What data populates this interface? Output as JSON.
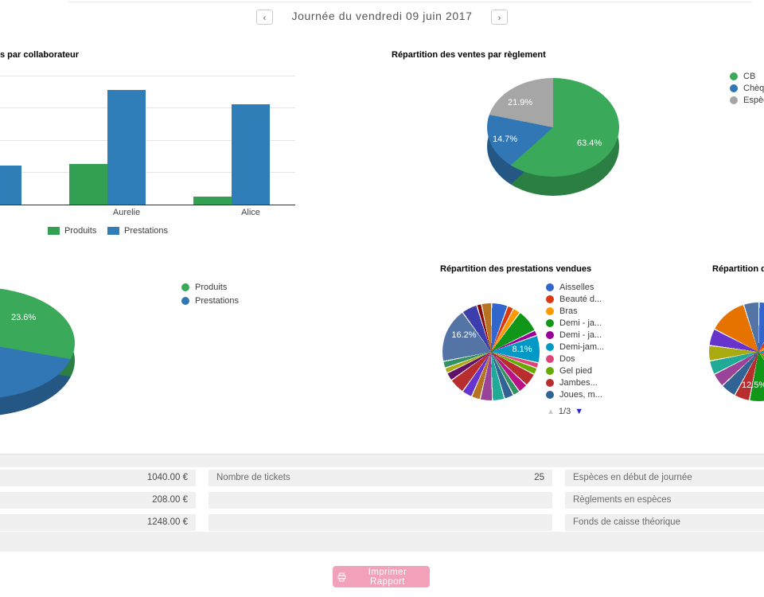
{
  "header": {
    "date_label": "Journée du vendredi 09 juin 2017",
    "prev_icon": "‹",
    "next_icon": "›"
  },
  "charts": {
    "collab_bar": {
      "type": "bar",
      "title_visible": "s par collaborateur",
      "categories": [
        "",
        "Aurelie",
        "Alice"
      ],
      "series": [
        {
          "name": "Produits",
          "color": "#33a054",
          "values": [
            null,
            125,
            25
          ]
        },
        {
          "name": "Prestations",
          "color": "#2f7eb8",
          "values": [
            120,
            355,
            310
          ]
        }
      ],
      "ylim": [
        0,
        400
      ],
      "grid": "on"
    },
    "reglement_pie": {
      "type": "pie",
      "title": "Répartition des ventes par règlement",
      "slices": [
        {
          "label": "CB",
          "pct": 63.4,
          "pct_label": "63.4%",
          "color": "#3aaa5a",
          "side": "#2b7f43"
        },
        {
          "label": "Chèque",
          "pct": 14.7,
          "pct_label": "14.7%",
          "color": "#3176b5",
          "side": "#245784"
        },
        {
          "label": "Espèces",
          "pct": 21.9,
          "pct_label": "21.9%",
          "color": "#a6a6a6",
          "side": "#7d7d7d"
        }
      ],
      "legend_position": "right"
    },
    "produits_prestations_pie": {
      "type": "pie",
      "slices": [
        {
          "label": "Produits",
          "pct": 23.6,
          "pct_label": "23.6%",
          "color": "#3aaa5a",
          "side": "#2b7f43"
        },
        {
          "label": "Prestations",
          "pct": 76.4,
          "color": "#3176b5",
          "side": "#245784"
        }
      ],
      "legend_position": "right"
    },
    "prestations_pie": {
      "type": "pie",
      "title": "Répartition des prestations vendues",
      "labels_shown": [
        {
          "text": "16.2%"
        },
        {
          "text": "8.1%"
        }
      ],
      "legend": [
        {
          "label": "Aisselles",
          "color": "#3366cc"
        },
        {
          "label": "Beauté d...",
          "color": "#dc3912"
        },
        {
          "label": "Bras",
          "color": "#ff9900"
        },
        {
          "label": "Demi - ja...",
          "color": "#109618"
        },
        {
          "label": "Demi - ja...",
          "color": "#990099"
        },
        {
          "label": "Demi-jam...",
          "color": "#0099c6"
        },
        {
          "label": "Dos",
          "color": "#dd4477"
        },
        {
          "label": "Gel pied",
          "color": "#66aa00"
        },
        {
          "label": "Jambes...",
          "color": "#b82e2e"
        },
        {
          "label": "Joues, m...",
          "color": "#316395"
        }
      ],
      "pagination": {
        "page": "1/3",
        "up_icon": "▲",
        "down_icon": "▼"
      },
      "slices": [
        {
          "color": "#3366cc",
          "pct": 4.8
        },
        {
          "color": "#dc3912",
          "pct": 1.8
        },
        {
          "color": "#ff9900",
          "pct": 2.2
        },
        {
          "color": "#109618",
          "pct": 6.8
        },
        {
          "color": "#990099",
          "pct": 1.6
        },
        {
          "color": "#0099c6",
          "pct": 8.1
        },
        {
          "color": "#dd4477",
          "pct": 1.6
        },
        {
          "color": "#66aa00",
          "pct": 2.0
        },
        {
          "color": "#b82e2e",
          "pct": 3.8
        },
        {
          "color": "#b91383",
          "pct": 2.8
        },
        {
          "color": "#329262",
          "pct": 2.0
        },
        {
          "color": "#316395",
          "pct": 2.8
        },
        {
          "color": "#22aa99",
          "pct": 3.6
        },
        {
          "color": "#994499",
          "pct": 3.6
        },
        {
          "color": "#b77322",
          "pct": 2.6
        },
        {
          "color": "#6633cc",
          "pct": 3.0
        },
        {
          "color": "#b82e2e",
          "pct": 4.6
        },
        {
          "color": "#651067",
          "pct": 2.4
        },
        {
          "color": "#aaaa11",
          "pct": 1.6
        },
        {
          "color": "#329262",
          "pct": 2.0
        },
        {
          "color": "#5574a6",
          "pct": 16.2
        },
        {
          "color": "#3b3eac",
          "pct": 4.6
        },
        {
          "color": "#8b0707",
          "pct": 1.4
        },
        {
          "color": "#b77322",
          "pct": 3.0
        }
      ]
    },
    "right_pie": {
      "type": "pie",
      "title_visible": "Répartition des",
      "label_shown": "12.5%",
      "slices": [
        {
          "color": "#3366cc",
          "pct": 8
        },
        {
          "color": "#dc3912",
          "pct": 6
        },
        {
          "color": "#ff9900",
          "pct": 7
        },
        {
          "color": "#0099c6",
          "pct": 8
        },
        {
          "color": "#dd4477",
          "pct": 5
        },
        {
          "color": "#66aa00",
          "pct": 6
        },
        {
          "color": "#109618",
          "pct": 12.5
        },
        {
          "color": "#b82e2e",
          "pct": 5
        },
        {
          "color": "#316395",
          "pct": 5
        },
        {
          "color": "#994499",
          "pct": 4.5
        },
        {
          "color": "#22aa99",
          "pct": 4.5
        },
        {
          "color": "#aaaa11",
          "pct": 5
        },
        {
          "color": "#6633cc",
          "pct": 5.5
        },
        {
          "color": "#e67300",
          "pct": 12.5
        },
        {
          "color": "#5574a6",
          "pct": 5
        }
      ]
    }
  },
  "summary": {
    "left_rows": [
      {
        "value": "1040.00 €"
      },
      {
        "value": "208.00 €"
      },
      {
        "value": "1248.00 €"
      }
    ],
    "middle_rows": [
      {
        "label": "Nombre de tickets",
        "value": "25"
      },
      {
        "label": "",
        "value": ""
      },
      {
        "label": "",
        "value": ""
      }
    ],
    "right_rows": [
      {
        "label": "Espèces en début de journée"
      },
      {
        "label": "Règlements en espèces"
      },
      {
        "label": "Fonds de caisse théorique"
      }
    ]
  },
  "footer": {
    "print_button": "Imprimer Rapport",
    "button_color": "#f2a2b8"
  }
}
